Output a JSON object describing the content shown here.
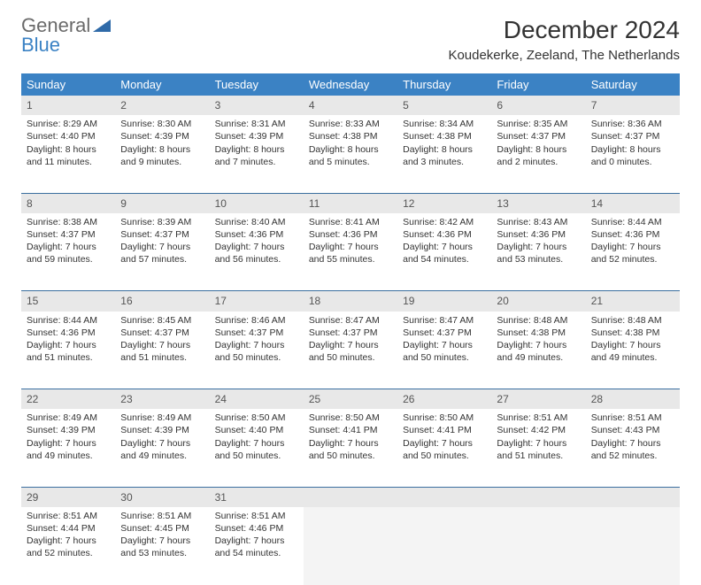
{
  "logo": {
    "line1": "General",
    "line2": "Blue"
  },
  "title": "December 2024",
  "location": "Koudekerke, Zeeland, The Netherlands",
  "colors": {
    "header_bg": "#3b82c4",
    "header_text": "#ffffff",
    "daynum_bg": "#e8e8e8",
    "row_border": "#3b6fa0",
    "logo_gray": "#6a6a6a",
    "logo_blue": "#3b82c4"
  },
  "weekdays": [
    "Sunday",
    "Monday",
    "Tuesday",
    "Wednesday",
    "Thursday",
    "Friday",
    "Saturday"
  ],
  "weeks": [
    [
      {
        "n": "1",
        "sr": "Sunrise: 8:29 AM",
        "ss": "Sunset: 4:40 PM",
        "d1": "Daylight: 8 hours",
        "d2": "and 11 minutes."
      },
      {
        "n": "2",
        "sr": "Sunrise: 8:30 AM",
        "ss": "Sunset: 4:39 PM",
        "d1": "Daylight: 8 hours",
        "d2": "and 9 minutes."
      },
      {
        "n": "3",
        "sr": "Sunrise: 8:31 AM",
        "ss": "Sunset: 4:39 PM",
        "d1": "Daylight: 8 hours",
        "d2": "and 7 minutes."
      },
      {
        "n": "4",
        "sr": "Sunrise: 8:33 AM",
        "ss": "Sunset: 4:38 PM",
        "d1": "Daylight: 8 hours",
        "d2": "and 5 minutes."
      },
      {
        "n": "5",
        "sr": "Sunrise: 8:34 AM",
        "ss": "Sunset: 4:38 PM",
        "d1": "Daylight: 8 hours",
        "d2": "and 3 minutes."
      },
      {
        "n": "6",
        "sr": "Sunrise: 8:35 AM",
        "ss": "Sunset: 4:37 PM",
        "d1": "Daylight: 8 hours",
        "d2": "and 2 minutes."
      },
      {
        "n": "7",
        "sr": "Sunrise: 8:36 AM",
        "ss": "Sunset: 4:37 PM",
        "d1": "Daylight: 8 hours",
        "d2": "and 0 minutes."
      }
    ],
    [
      {
        "n": "8",
        "sr": "Sunrise: 8:38 AM",
        "ss": "Sunset: 4:37 PM",
        "d1": "Daylight: 7 hours",
        "d2": "and 59 minutes."
      },
      {
        "n": "9",
        "sr": "Sunrise: 8:39 AM",
        "ss": "Sunset: 4:37 PM",
        "d1": "Daylight: 7 hours",
        "d2": "and 57 minutes."
      },
      {
        "n": "10",
        "sr": "Sunrise: 8:40 AM",
        "ss": "Sunset: 4:36 PM",
        "d1": "Daylight: 7 hours",
        "d2": "and 56 minutes."
      },
      {
        "n": "11",
        "sr": "Sunrise: 8:41 AM",
        "ss": "Sunset: 4:36 PM",
        "d1": "Daylight: 7 hours",
        "d2": "and 55 minutes."
      },
      {
        "n": "12",
        "sr": "Sunrise: 8:42 AM",
        "ss": "Sunset: 4:36 PM",
        "d1": "Daylight: 7 hours",
        "d2": "and 54 minutes."
      },
      {
        "n": "13",
        "sr": "Sunrise: 8:43 AM",
        "ss": "Sunset: 4:36 PM",
        "d1": "Daylight: 7 hours",
        "d2": "and 53 minutes."
      },
      {
        "n": "14",
        "sr": "Sunrise: 8:44 AM",
        "ss": "Sunset: 4:36 PM",
        "d1": "Daylight: 7 hours",
        "d2": "and 52 minutes."
      }
    ],
    [
      {
        "n": "15",
        "sr": "Sunrise: 8:44 AM",
        "ss": "Sunset: 4:36 PM",
        "d1": "Daylight: 7 hours",
        "d2": "and 51 minutes."
      },
      {
        "n": "16",
        "sr": "Sunrise: 8:45 AM",
        "ss": "Sunset: 4:37 PM",
        "d1": "Daylight: 7 hours",
        "d2": "and 51 minutes."
      },
      {
        "n": "17",
        "sr": "Sunrise: 8:46 AM",
        "ss": "Sunset: 4:37 PM",
        "d1": "Daylight: 7 hours",
        "d2": "and 50 minutes."
      },
      {
        "n": "18",
        "sr": "Sunrise: 8:47 AM",
        "ss": "Sunset: 4:37 PM",
        "d1": "Daylight: 7 hours",
        "d2": "and 50 minutes."
      },
      {
        "n": "19",
        "sr": "Sunrise: 8:47 AM",
        "ss": "Sunset: 4:37 PM",
        "d1": "Daylight: 7 hours",
        "d2": "and 50 minutes."
      },
      {
        "n": "20",
        "sr": "Sunrise: 8:48 AM",
        "ss": "Sunset: 4:38 PM",
        "d1": "Daylight: 7 hours",
        "d2": "and 49 minutes."
      },
      {
        "n": "21",
        "sr": "Sunrise: 8:48 AM",
        "ss": "Sunset: 4:38 PM",
        "d1": "Daylight: 7 hours",
        "d2": "and 49 minutes."
      }
    ],
    [
      {
        "n": "22",
        "sr": "Sunrise: 8:49 AM",
        "ss": "Sunset: 4:39 PM",
        "d1": "Daylight: 7 hours",
        "d2": "and 49 minutes."
      },
      {
        "n": "23",
        "sr": "Sunrise: 8:49 AM",
        "ss": "Sunset: 4:39 PM",
        "d1": "Daylight: 7 hours",
        "d2": "and 49 minutes."
      },
      {
        "n": "24",
        "sr": "Sunrise: 8:50 AM",
        "ss": "Sunset: 4:40 PM",
        "d1": "Daylight: 7 hours",
        "d2": "and 50 minutes."
      },
      {
        "n": "25",
        "sr": "Sunrise: 8:50 AM",
        "ss": "Sunset: 4:41 PM",
        "d1": "Daylight: 7 hours",
        "d2": "and 50 minutes."
      },
      {
        "n": "26",
        "sr": "Sunrise: 8:50 AM",
        "ss": "Sunset: 4:41 PM",
        "d1": "Daylight: 7 hours",
        "d2": "and 50 minutes."
      },
      {
        "n": "27",
        "sr": "Sunrise: 8:51 AM",
        "ss": "Sunset: 4:42 PM",
        "d1": "Daylight: 7 hours",
        "d2": "and 51 minutes."
      },
      {
        "n": "28",
        "sr": "Sunrise: 8:51 AM",
        "ss": "Sunset: 4:43 PM",
        "d1": "Daylight: 7 hours",
        "d2": "and 52 minutes."
      }
    ],
    [
      {
        "n": "29",
        "sr": "Sunrise: 8:51 AM",
        "ss": "Sunset: 4:44 PM",
        "d1": "Daylight: 7 hours",
        "d2": "and 52 minutes."
      },
      {
        "n": "30",
        "sr": "Sunrise: 8:51 AM",
        "ss": "Sunset: 4:45 PM",
        "d1": "Daylight: 7 hours",
        "d2": "and 53 minutes."
      },
      {
        "n": "31",
        "sr": "Sunrise: 8:51 AM",
        "ss": "Sunset: 4:46 PM",
        "d1": "Daylight: 7 hours",
        "d2": "and 54 minutes."
      },
      null,
      null,
      null,
      null
    ]
  ]
}
